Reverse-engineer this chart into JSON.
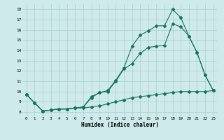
{
  "xlabel": "Humidex (Indice chaleur)",
  "background_color": "#ceeaea",
  "grid_color": "#aacece",
  "line_color": "#1a7060",
  "x_values": [
    0,
    1,
    2,
    3,
    4,
    5,
    6,
    7,
    8,
    9,
    10,
    11,
    12,
    13,
    14,
    15,
    16,
    17,
    18,
    19,
    20,
    21,
    22,
    23
  ],
  "line1": [
    9.7,
    8.9,
    8.1,
    8.2,
    8.3,
    8.3,
    8.4,
    8.5,
    9.5,
    9.9,
    10.1,
    11.1,
    12.3,
    14.4,
    15.5,
    15.9,
    16.4,
    16.4,
    18.0,
    17.2,
    15.4,
    13.8,
    11.6,
    10.1
  ],
  "line2": [
    9.7,
    8.9,
    8.1,
    8.2,
    8.3,
    8.3,
    8.4,
    8.5,
    9.4,
    9.9,
    10.0,
    11.0,
    12.2,
    12.7,
    13.7,
    14.3,
    14.4,
    14.5,
    16.6,
    16.3,
    15.4,
    13.8,
    11.6,
    10.1
  ],
  "line3": [
    9.7,
    8.9,
    8.1,
    8.2,
    8.3,
    8.3,
    8.4,
    8.4,
    8.5,
    8.6,
    8.8,
    9.0,
    9.2,
    9.4,
    9.5,
    9.6,
    9.7,
    9.8,
    9.9,
    10.0,
    10.0,
    10.0,
    10.0,
    10.1
  ],
  "xlim": [
    -0.5,
    23.5
  ],
  "ylim": [
    7.6,
    18.5
  ],
  "yticks": [
    8,
    9,
    10,
    11,
    12,
    13,
    14,
    15,
    16,
    17,
    18
  ],
  "xticks": [
    0,
    1,
    2,
    3,
    4,
    5,
    6,
    7,
    8,
    9,
    10,
    11,
    12,
    13,
    14,
    15,
    16,
    17,
    18,
    19,
    20,
    21,
    22,
    23
  ]
}
